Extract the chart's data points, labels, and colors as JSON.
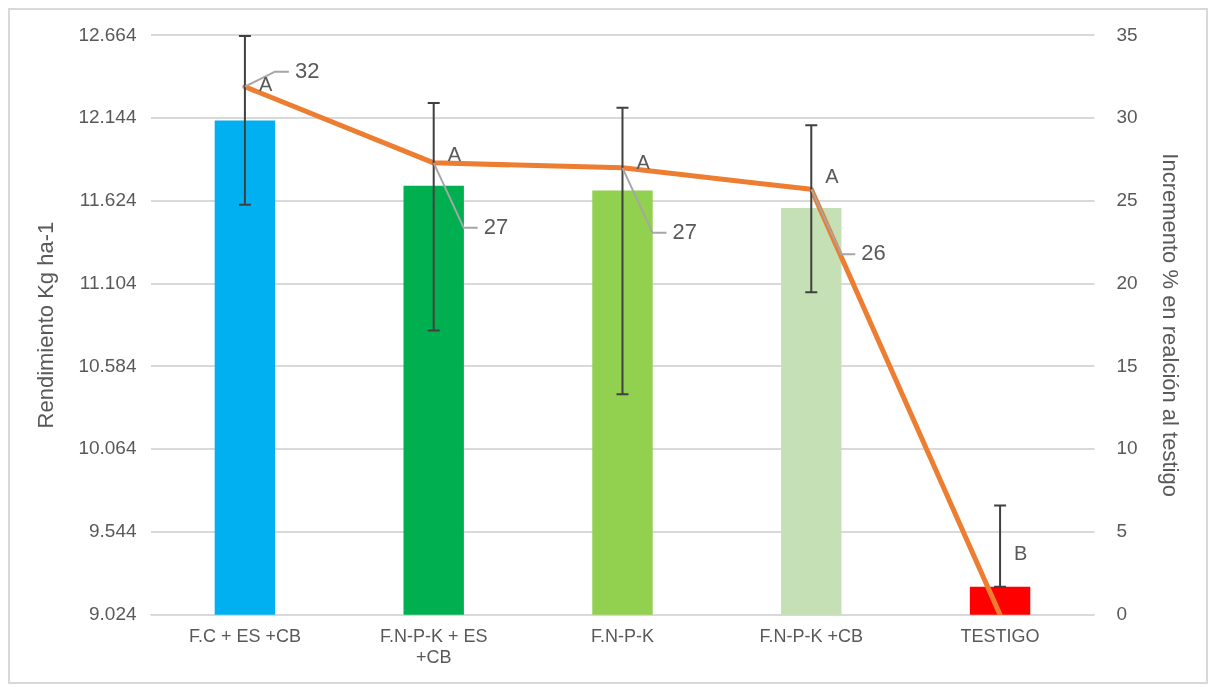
{
  "chart_data": {
    "type": "bar",
    "ylabel": "Rendimiento Kg ha-1",
    "y2label": "Incremento % en realción al testigo",
    "categories": [
      "F.C + ES +CB",
      "F.N-P-K + ES +CB",
      "F.N-P-K",
      "F.N-P-K +CB",
      "TESTIGO"
    ],
    "series": [
      {
        "colors": [
          "#00b0f0",
          "#00b050",
          "#92d050",
          "#c5e0b4",
          "#ff0000"
        ],
        "values": [
          12130,
          11720,
          11690,
          11580,
          9200
        ],
        "errors": [
          [
            11600,
            12660
          ],
          [
            10810,
            12240
          ],
          [
            10410,
            12210
          ],
          [
            11050,
            12100
          ],
          [
            9200,
            9710
          ]
        ]
      },
      {
        "type": "line",
        "axis": "y2",
        "color": "#ed7d31",
        "values": [
          31.9,
          27.3,
          27.0,
          25.7,
          0
        ],
        "value_labels": [
          "32",
          "27",
          "27",
          "26",
          null
        ]
      }
    ],
    "marker": "none",
    "grid": "y",
    "ylim": [
      9024,
      12664
    ],
    "yticks": [
      {
        "value": 9024,
        "label": "9.024"
      },
      {
        "value": 9544,
        "label": "9.544"
      },
      {
        "value": 10064,
        "label": "10.064"
      },
      {
        "value": 10584,
        "label": "10.584"
      },
      {
        "value": 11104,
        "label": "11.104"
      },
      {
        "value": 11624,
        "label": "11.624"
      },
      {
        "value": 12144,
        "label": "12.144"
      },
      {
        "value": 12664,
        "label": "12.664"
      }
    ],
    "y2lim": [
      0,
      35
    ],
    "y2ticks": [
      0,
      5,
      10,
      15,
      20,
      25,
      30,
      35
    ],
    "annotations": [
      {
        "text": "A",
        "x": "F.C + ES +CB",
        "y": 12350
      },
      {
        "text": "A",
        "x": "F.N-P-K + ES +CB",
        "y": 11910
      },
      {
        "text": "A",
        "x": "F.N-P-K",
        "y": 11860
      },
      {
        "text": "A",
        "x": "F.N-P-K +CB",
        "y": 11770
      },
      {
        "text": "B",
        "x": "TESTIGO",
        "y": 9400
      }
    ]
  }
}
